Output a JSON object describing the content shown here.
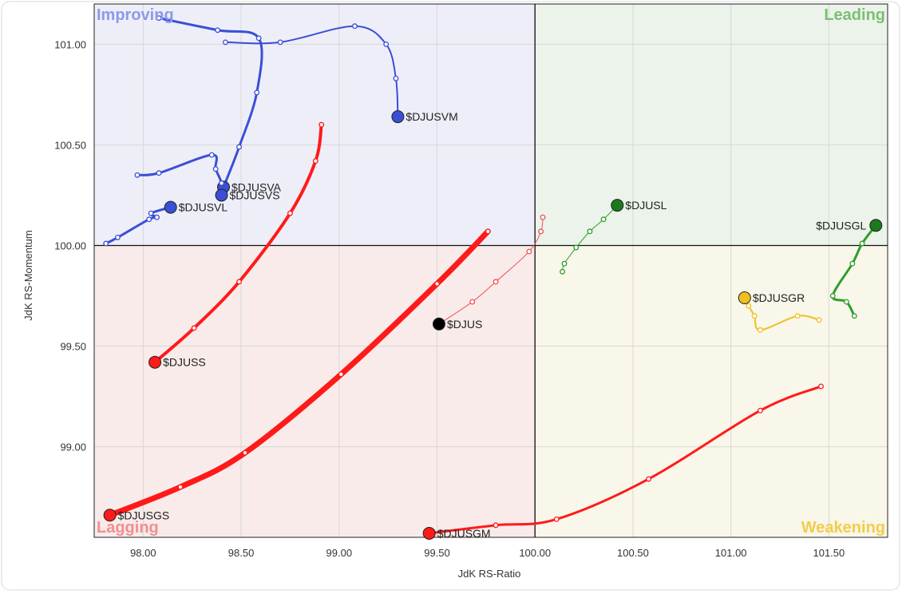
{
  "chart_data": {
    "type": "scatter",
    "title": "",
    "xlabel": "JdK RS-Ratio",
    "ylabel": "JdK RS-Momentum",
    "xlim": [
      97.75,
      101.8
    ],
    "ylim": [
      98.55,
      101.2
    ],
    "x_ticks": [
      98.0,
      98.5,
      99.0,
      99.5,
      100.0,
      100.5,
      101.0,
      101.5
    ],
    "x_tick_labels": [
      "98.00",
      "98.50",
      "99.00",
      "99.50",
      "100.00",
      "100.50",
      "101.00",
      "101.50"
    ],
    "y_ticks": [
      99.0,
      99.5,
      100.0,
      100.5,
      101.0
    ],
    "y_tick_labels": [
      "99.00",
      "99.50",
      "100.00",
      "100.50",
      "101.00"
    ],
    "center": {
      "x": 100.0,
      "y": 100.0
    },
    "grid": true,
    "quadrants": [
      {
        "name": "Improving",
        "position": "top-left",
        "fill": "#eeeef9",
        "label_color": "#8e99e8"
      },
      {
        "name": "Leading",
        "position": "top-right",
        "fill": "#ebf3ea",
        "label_color": "#7cbf74"
      },
      {
        "name": "Lagging",
        "position": "bottom-left",
        "fill": "#f8ebea",
        "label_color": "#f08f8f"
      },
      {
        "name": "Weakening",
        "position": "bottom-right",
        "fill": "#f9f6ea",
        "label_color": "#f2cd48"
      }
    ],
    "series": [
      {
        "name": "$DJUSVM",
        "color": "#3a4fd6",
        "head_color": "#3a4fd6",
        "stroke": 2,
        "points": [
          [
            98.42,
            101.01
          ],
          [
            98.7,
            101.01
          ],
          [
            99.08,
            101.09
          ],
          [
            99.24,
            101.0
          ],
          [
            99.29,
            100.83
          ],
          [
            99.3,
            100.64
          ]
        ]
      },
      {
        "name": "$DJUSVA",
        "color": "#3a4fd6",
        "head_color": "#3a4fd6",
        "stroke": 3,
        "points": [
          [
            98.08,
            101.13
          ],
          [
            98.38,
            101.07
          ],
          [
            98.59,
            101.03
          ],
          [
            98.58,
            100.76
          ],
          [
            98.49,
            100.49
          ],
          [
            98.41,
            100.29
          ]
        ]
      },
      {
        "name": "$DJUSVS",
        "color": "#3a4fd6",
        "head_color": "#3a4fd6",
        "stroke": 3,
        "points": [
          [
            97.97,
            100.35
          ],
          [
            98.08,
            100.36
          ],
          [
            98.35,
            100.45
          ],
          [
            98.37,
            100.38
          ],
          [
            98.4,
            100.31
          ],
          [
            98.4,
            100.25
          ]
        ]
      },
      {
        "name": "$DJUSVL",
        "color": "#3a4fd6",
        "head_color": "#3a4fd6",
        "stroke": 3,
        "points": [
          [
            97.81,
            100.01
          ],
          [
            97.87,
            100.04
          ],
          [
            98.03,
            100.13
          ],
          [
            98.07,
            100.14
          ],
          [
            98.04,
            100.16
          ],
          [
            98.14,
            100.19
          ]
        ]
      },
      {
        "name": "$DJUSL",
        "color": "#2e9e2a",
        "head_color": "#1c7a1c",
        "stroke": 1,
        "points": [
          [
            100.14,
            99.87
          ],
          [
            100.15,
            99.91
          ],
          [
            100.21,
            99.99
          ],
          [
            100.28,
            100.07
          ],
          [
            100.35,
            100.13
          ],
          [
            100.42,
            100.2
          ]
        ]
      },
      {
        "name": "$DJUS",
        "color": "#f05050",
        "head_color": "#000000",
        "stroke": 1,
        "points": [
          [
            100.04,
            100.14
          ],
          [
            100.03,
            100.07
          ],
          [
            99.97,
            99.97
          ],
          [
            99.8,
            99.82
          ],
          [
            99.68,
            99.72
          ],
          [
            99.51,
            99.61
          ]
        ]
      },
      {
        "name": "$DJUSGL",
        "color": "#2e9e2a",
        "head_color": "#1c7a1c",
        "stroke": 3,
        "points": [
          [
            101.63,
            99.65
          ],
          [
            101.59,
            99.72
          ],
          [
            101.52,
            99.75
          ],
          [
            101.62,
            99.91
          ],
          [
            101.67,
            100.01
          ],
          [
            101.74,
            100.1
          ]
        ]
      },
      {
        "name": "$DJUSGR",
        "color": "#f0c020",
        "head_color": "#f0c020",
        "stroke": 2,
        "points": [
          [
            101.45,
            99.63
          ],
          [
            101.34,
            99.65
          ],
          [
            101.15,
            99.58
          ],
          [
            101.12,
            99.65
          ],
          [
            101.09,
            99.7
          ],
          [
            101.07,
            99.74
          ]
        ]
      },
      {
        "name": "$DJUSS",
        "color": "#ff1a1a",
        "head_color": "#ff1a1a",
        "stroke": 4,
        "points": [
          [
            98.91,
            100.6
          ],
          [
            98.88,
            100.42
          ],
          [
            98.75,
            100.16
          ],
          [
            98.49,
            99.82
          ],
          [
            98.26,
            99.59
          ],
          [
            98.06,
            99.42
          ]
        ]
      },
      {
        "name": "$DJUSGS",
        "color": "#ff1a1a",
        "head_color": "#ff1a1a",
        "stroke": 7,
        "points": [
          [
            99.76,
            100.07
          ],
          [
            99.5,
            99.81
          ],
          [
            99.01,
            99.36
          ],
          [
            98.52,
            98.97
          ],
          [
            98.19,
            98.8
          ],
          [
            97.83,
            98.66
          ]
        ]
      },
      {
        "name": "$DJUSGM",
        "color": "#ff1a1a",
        "head_color": "#ff1a1a",
        "stroke": 3,
        "points": [
          [
            101.46,
            99.3
          ],
          [
            101.15,
            99.18
          ],
          [
            100.58,
            98.84
          ],
          [
            100.11,
            98.64
          ],
          [
            99.8,
            98.61
          ],
          [
            99.46,
            98.57
          ]
        ]
      }
    ]
  }
}
